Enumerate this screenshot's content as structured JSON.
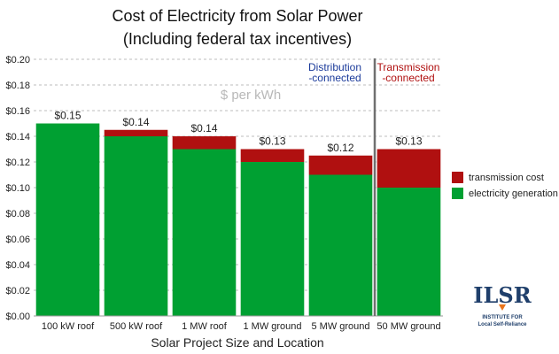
{
  "chart_data": {
    "type": "bar",
    "stacked": true,
    "title": "Cost of Electricity from Solar Power",
    "subtitle": "(Including federal tax incentives)",
    "xlabel": "Solar Project Size and Location",
    "watermark_label": "$ per kWh",
    "categories": [
      "100 kW roof",
      "500 kW roof",
      "1 MW roof",
      "1 MW ground",
      "5 MW ground",
      "50 MW ground"
    ],
    "series": [
      {
        "name": "electricity generation",
        "color": "#00a032",
        "values": [
          0.15,
          0.14,
          0.13,
          0.12,
          0.11,
          0.1
        ]
      },
      {
        "name": "transmission cost",
        "color": "#b01010",
        "values": [
          0.0,
          0.005,
          0.01,
          0.01,
          0.015,
          0.03
        ]
      }
    ],
    "data_labels": [
      "$0.15",
      "$0.14",
      "$0.14",
      "$0.13",
      "$0.12",
      "$0.13"
    ],
    "ylim": [
      0,
      0.2
    ],
    "yticks": [
      "$0.00",
      "$0.02",
      "$0.04",
      "$0.06",
      "$0.08",
      "$0.10",
      "$0.12",
      "$0.14",
      "$0.16",
      "$0.18",
      "$0.20"
    ],
    "grid": true,
    "legend_position": "right",
    "annotations": {
      "distribution_line1": "Distribution",
      "distribution_line2": "-connected",
      "transmission_line1": "Transmission",
      "transmission_line2": "-connected",
      "distribution_color": "#1a3a9a",
      "transmission_color": "#b01010"
    }
  },
  "logo": {
    "text": "ILSR",
    "line1": "INSTITUTE FOR",
    "line2": "Local Self-Reliance",
    "color": "#1f3f6b"
  }
}
